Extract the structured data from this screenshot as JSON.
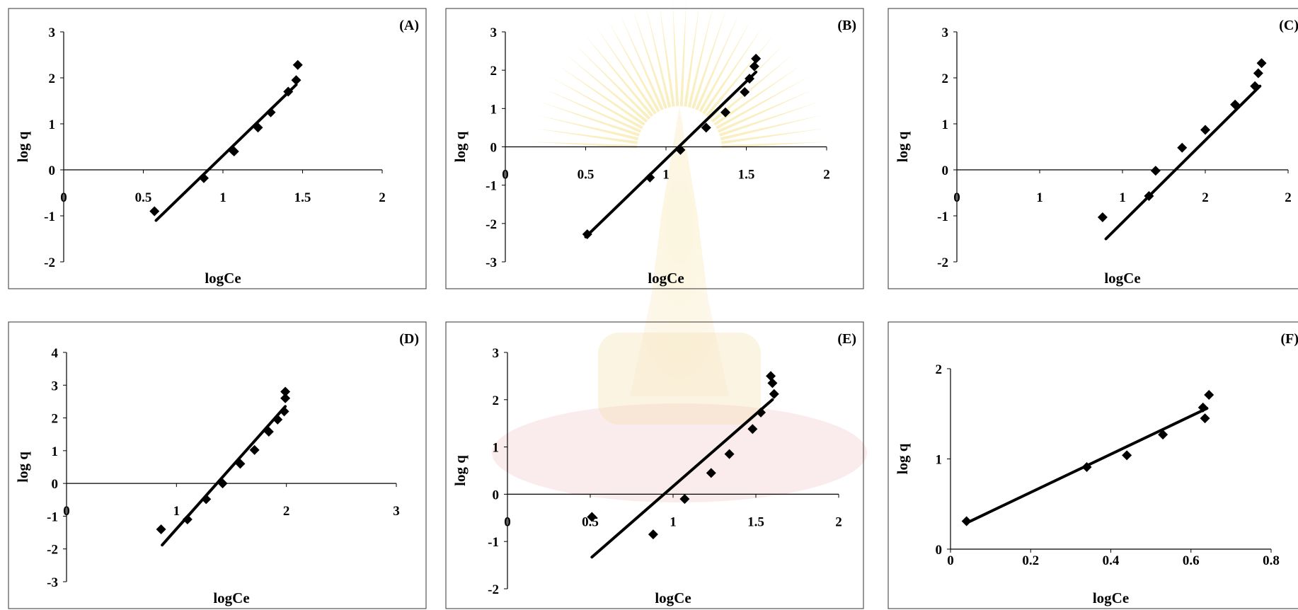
{
  "colors": {
    "marker": "#000000",
    "line": "#000000",
    "axis": "#000000",
    "frame": "#333333"
  },
  "chart_data": [
    {
      "type": "scatter",
      "panel_label": "(A)",
      "xlabel": "logCe",
      "ylabel": "log q",
      "xlim": [
        0,
        2
      ],
      "ylim": [
        -2,
        3
      ],
      "xticks": [
        "0",
        "0.5",
        "1",
        "1.5",
        "2"
      ],
      "yticks": [
        "-2",
        "-1",
        "0",
        "1",
        "2",
        "3"
      ],
      "points": [
        [
          0.57,
          -0.9
        ],
        [
          0.88,
          -0.18
        ],
        [
          1.06,
          0.43
        ],
        [
          1.07,
          0.4
        ],
        [
          1.22,
          0.92
        ],
        [
          1.3,
          1.25
        ],
        [
          1.41,
          1.7
        ],
        [
          1.46,
          1.95
        ],
        [
          1.47,
          2.28
        ]
      ],
      "fit": [
        [
          0.58,
          -1.1
        ],
        [
          1.46,
          1.85
        ]
      ]
    },
    {
      "type": "scatter",
      "panel_label": "(B)",
      "xlabel": "logCe",
      "ylabel": "log q",
      "xlim": [
        0,
        2
      ],
      "ylim": [
        -3,
        3
      ],
      "xticks": [
        "0",
        "0.5",
        "1",
        "1.5",
        "2"
      ],
      "yticks": [
        "-3",
        "-2",
        "-1",
        "0",
        "1",
        "2",
        "3"
      ],
      "points": [
        [
          0.51,
          -2.28
        ],
        [
          0.9,
          -0.8
        ],
        [
          1.09,
          -0.08
        ],
        [
          1.25,
          0.5
        ],
        [
          1.37,
          0.9
        ],
        [
          1.49,
          1.43
        ],
        [
          1.52,
          1.78
        ],
        [
          1.55,
          2.1
        ],
        [
          1.56,
          2.3
        ]
      ],
      "fit": [
        [
          0.5,
          -2.35
        ],
        [
          1.56,
          1.95
        ]
      ]
    },
    {
      "type": "scatter",
      "panel_label": "(C)",
      "xlabel": "logCe",
      "ylabel": "log q",
      "xlim": [
        0,
        2
      ],
      "ylim": [
        -2,
        3
      ],
      "xticks": [
        "0",
        "1",
        "1",
        "2",
        "2"
      ],
      "yticks": [
        "-2",
        "-1",
        "0",
        "1",
        "2",
        "3"
      ],
      "points": [
        [
          0.88,
          -1.03
        ],
        [
          1.16,
          -0.57
        ],
        [
          1.2,
          -0.02
        ],
        [
          1.36,
          0.48
        ],
        [
          1.5,
          0.87
        ],
        [
          1.68,
          1.42
        ],
        [
          1.8,
          1.82
        ],
        [
          1.82,
          2.1
        ],
        [
          1.84,
          2.32
        ]
      ],
      "fit": [
        [
          0.9,
          -1.5
        ],
        [
          1.83,
          1.82
        ]
      ]
    },
    {
      "type": "scatter",
      "panel_label": "(D)",
      "xlabel": "logCe",
      "ylabel": "log q",
      "xlim": [
        0,
        3
      ],
      "ylim": [
        -3,
        4
      ],
      "xticks": [
        "0",
        "1",
        "2",
        "3"
      ],
      "yticks": [
        "-3",
        "-2",
        "-1",
        "0",
        "1",
        "2",
        "3",
        "4"
      ],
      "points": [
        [
          0.86,
          -1.4
        ],
        [
          1.1,
          -1.1
        ],
        [
          1.27,
          -0.48
        ],
        [
          1.42,
          0.0
        ],
        [
          1.58,
          0.6
        ],
        [
          1.71,
          1.02
        ],
        [
          1.84,
          1.58
        ],
        [
          1.92,
          1.95
        ],
        [
          1.98,
          2.2
        ],
        [
          1.99,
          2.6
        ],
        [
          1.99,
          2.8
        ]
      ],
      "fit": [
        [
          0.87,
          -1.88
        ],
        [
          1.99,
          2.35
        ]
      ]
    },
    {
      "type": "scatter",
      "panel_label": "(E)",
      "xlabel": "logCe",
      "ylabel": "log q",
      "xlim": [
        0,
        2
      ],
      "ylim": [
        -2,
        3
      ],
      "xticks": [
        "0",
        "0.5",
        "1",
        "1.5",
        "2"
      ],
      "yticks": [
        "-2",
        "-1",
        "0",
        "1",
        "2",
        "3"
      ],
      "points": [
        [
          0.51,
          -0.48
        ],
        [
          0.88,
          -0.85
        ],
        [
          1.07,
          -0.1
        ],
        [
          1.23,
          0.45
        ],
        [
          1.34,
          0.85
        ],
        [
          1.48,
          1.38
        ],
        [
          1.53,
          1.73
        ],
        [
          1.59,
          2.5
        ],
        [
          1.6,
          2.35
        ],
        [
          1.61,
          2.12
        ]
      ],
      "fit": [
        [
          0.51,
          -1.33
        ],
        [
          1.6,
          2.0
        ]
      ]
    },
    {
      "type": "scatter",
      "panel_label": "(F)",
      "xlabel": "logCe",
      "ylabel": "log q",
      "xlim": [
        0,
        0.8
      ],
      "ylim": [
        0,
        2
      ],
      "xticks": [
        "0",
        "0.2",
        "0.4",
        "0.6",
        "0.8"
      ],
      "yticks": [
        "0",
        "1",
        "2"
      ],
      "points": [
        [
          0.04,
          0.31
        ],
        [
          0.34,
          0.91
        ],
        [
          0.44,
          1.04
        ],
        [
          0.53,
          1.27
        ],
        [
          0.63,
          1.57
        ],
        [
          0.635,
          1.45
        ],
        [
          0.645,
          1.71
        ]
      ],
      "fit": [
        [
          0.04,
          0.29
        ],
        [
          0.64,
          1.56
        ]
      ]
    }
  ]
}
